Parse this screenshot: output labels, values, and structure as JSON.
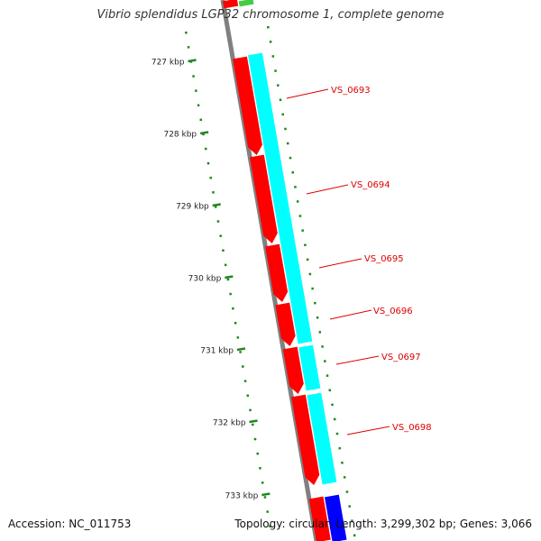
{
  "title": "Vibrio splendidus LGP32 chromosome 1, complete genome",
  "footer": {
    "accession": "Accession: NC_011753",
    "summary": "Topology: circular; Length: 3,299,302 bp; Genes: 3,066"
  },
  "colors": {
    "backbone": "#808080",
    "tick": "#228822",
    "forward_gene": "#ff0000",
    "cds_track": "#00ffff",
    "reverse_gene": "#0000ff",
    "other_feature": "#44cc44",
    "label": "#dd0000"
  },
  "ruler": {
    "unit": "kbp",
    "ticks": [
      {
        "kbp": 727,
        "label": "727 kbp"
      },
      {
        "kbp": 728,
        "label": "728 kbp"
      },
      {
        "kbp": 729,
        "label": "729 kbp"
      },
      {
        "kbp": 730,
        "label": "730 kbp"
      },
      {
        "kbp": 731,
        "label": "731 kbp"
      },
      {
        "kbp": 732,
        "label": "732 kbp"
      },
      {
        "kbp": 733,
        "label": "733 kbp"
      }
    ]
  },
  "genes": [
    {
      "name": "VS_0693"
    },
    {
      "name": "VS_0694"
    },
    {
      "name": "VS_0695"
    },
    {
      "name": "VS_0696"
    },
    {
      "name": "VS_0697"
    },
    {
      "name": "VS_0698"
    }
  ]
}
